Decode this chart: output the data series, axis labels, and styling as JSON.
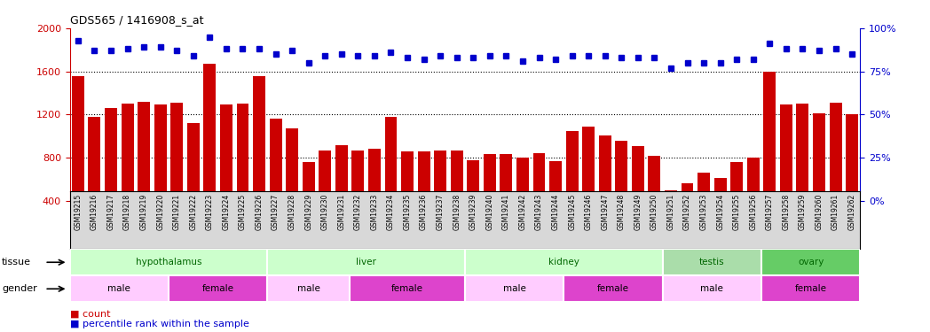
{
  "title": "GDS565 / 1416908_s_at",
  "samples": [
    "GSM19215",
    "GSM19216",
    "GSM19217",
    "GSM19218",
    "GSM19219",
    "GSM19220",
    "GSM19221",
    "GSM19222",
    "GSM19223",
    "GSM19224",
    "GSM19225",
    "GSM19226",
    "GSM19227",
    "GSM19228",
    "GSM19229",
    "GSM19230",
    "GSM19231",
    "GSM19232",
    "GSM19233",
    "GSM19234",
    "GSM19235",
    "GSM19236",
    "GSM19237",
    "GSM19238",
    "GSM19239",
    "GSM19240",
    "GSM19241",
    "GSM19242",
    "GSM19243",
    "GSM19244",
    "GSM19245",
    "GSM19246",
    "GSM19247",
    "GSM19248",
    "GSM19249",
    "GSM19250",
    "GSM19251",
    "GSM19252",
    "GSM19253",
    "GSM19254",
    "GSM19255",
    "GSM19256",
    "GSM19257",
    "GSM19258",
    "GSM19259",
    "GSM19260",
    "GSM19261",
    "GSM19262"
  ],
  "counts": [
    1560,
    1180,
    1260,
    1300,
    1320,
    1290,
    1310,
    1120,
    1670,
    1290,
    1300,
    1560,
    1160,
    1070,
    760,
    870,
    920,
    870,
    880,
    1180,
    860,
    855,
    870,
    870,
    780,
    830,
    830,
    800,
    840,
    770,
    1050,
    1090,
    1010,
    960,
    910,
    820,
    500,
    560,
    660,
    610,
    760,
    800,
    1600,
    1290,
    1300,
    1210,
    1310,
    1200
  ],
  "percentile": [
    93,
    87,
    87,
    88,
    89,
    89,
    87,
    84,
    95,
    88,
    88,
    88,
    85,
    87,
    80,
    84,
    85,
    84,
    84,
    86,
    83,
    82,
    84,
    83,
    83,
    84,
    84,
    81,
    83,
    82,
    84,
    84,
    84,
    83,
    83,
    83,
    77,
    80,
    80,
    80,
    82,
    82,
    91,
    88,
    88,
    87,
    88,
    85
  ],
  "bar_color": "#cc0000",
  "dot_color": "#0000cc",
  "ylim_left": [
    400,
    2000
  ],
  "ylim_right": [
    0,
    100
  ],
  "yticks_left": [
    400,
    800,
    1200,
    1600,
    2000
  ],
  "yticks_right": [
    0,
    25,
    50,
    75,
    100
  ],
  "gridlines": [
    800,
    1200,
    1600
  ],
  "tissue_groups": [
    {
      "label": "hypothalamus",
      "start": 0,
      "end": 11,
      "color": "#ccffcc"
    },
    {
      "label": "liver",
      "start": 12,
      "end": 23,
      "color": "#ccffcc"
    },
    {
      "label": "kidney",
      "start": 24,
      "end": 35,
      "color": "#ccffcc"
    },
    {
      "label": "testis",
      "start": 36,
      "end": 41,
      "color": "#aaddaa"
    },
    {
      "label": "ovary",
      "start": 42,
      "end": 47,
      "color": "#66cc66"
    }
  ],
  "gender_groups": [
    {
      "label": "male",
      "start": 0,
      "end": 5,
      "color": "#ffccff"
    },
    {
      "label": "female",
      "start": 6,
      "end": 11,
      "color": "#dd44cc"
    },
    {
      "label": "male",
      "start": 12,
      "end": 16,
      "color": "#ffccff"
    },
    {
      "label": "female",
      "start": 17,
      "end": 23,
      "color": "#dd44cc"
    },
    {
      "label": "male",
      "start": 24,
      "end": 29,
      "color": "#ffccff"
    },
    {
      "label": "female",
      "start": 30,
      "end": 35,
      "color": "#dd44cc"
    },
    {
      "label": "male",
      "start": 36,
      "end": 41,
      "color": "#ffccff"
    },
    {
      "label": "female",
      "start": 42,
      "end": 47,
      "color": "#dd44cc"
    }
  ],
  "bg_color": "#ffffff",
  "xticklabel_bg": "#d8d8d8"
}
